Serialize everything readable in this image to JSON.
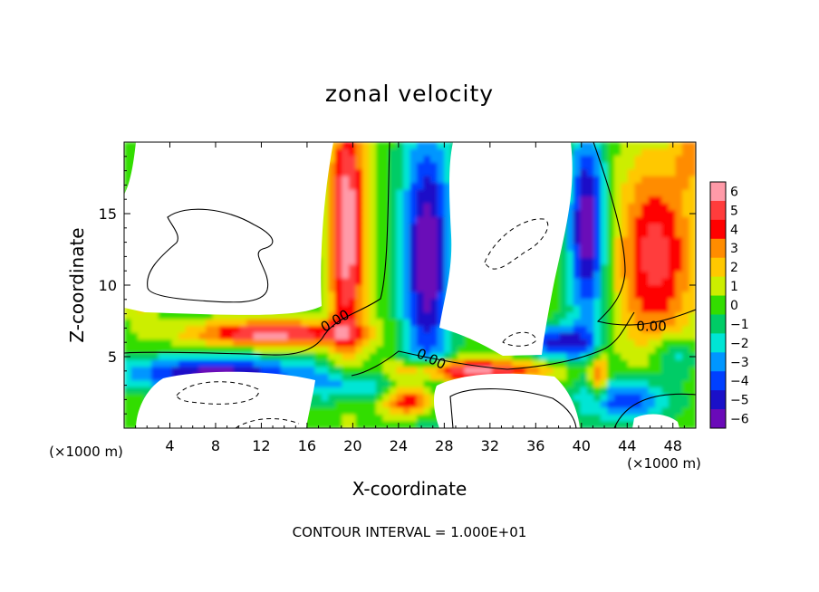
{
  "chart_data": {
    "type": "heatmap",
    "title": "zonal velocity",
    "xlabel": "X-coordinate",
    "ylabel": "Z-coordinate",
    "x_unit_label": "(×1000 m)",
    "y_unit_label": "(×1000 m)",
    "footer": "CONTOUR INTERVAL = 1.000E+01",
    "x_range": [
      0,
      50
    ],
    "y_range": [
      0,
      20
    ],
    "x_ticks": [
      4,
      8,
      12,
      16,
      20,
      24,
      28,
      32,
      36,
      40,
      44,
      48
    ],
    "y_ticks": [
      5,
      10,
      15
    ],
    "colorbar": {
      "levels": [
        6,
        5,
        4,
        3,
        2,
        1,
        0,
        -1,
        -2,
        -3,
        -4,
        -5,
        -6
      ],
      "labels": [
        "6",
        "5",
        "4",
        "3",
        "2",
        "1",
        "0",
        "−1",
        "−2",
        "−3",
        "−4",
        "−5",
        "−6"
      ],
      "colors": [
        "#ff9aa8",
        "#ff3c3c",
        "#ff0000",
        "#ff8c00",
        "#ffc800",
        "#ccee00",
        "#33dd00",
        "#00cc66",
        "#00e5d5",
        "#0096ff",
        "#0040ff",
        "#1a10c8",
        "#6a0ab8"
      ]
    },
    "contour_labels": [
      {
        "text": "0.00",
        "x": 17.5,
        "y": 6.7
      },
      {
        "text": "0.00",
        "x": 25.5,
        "y": 5.0
      },
      {
        "text": "0.00",
        "x": 44.8,
        "y": 6.8
      }
    ],
    "background_color": "#ffffff"
  }
}
